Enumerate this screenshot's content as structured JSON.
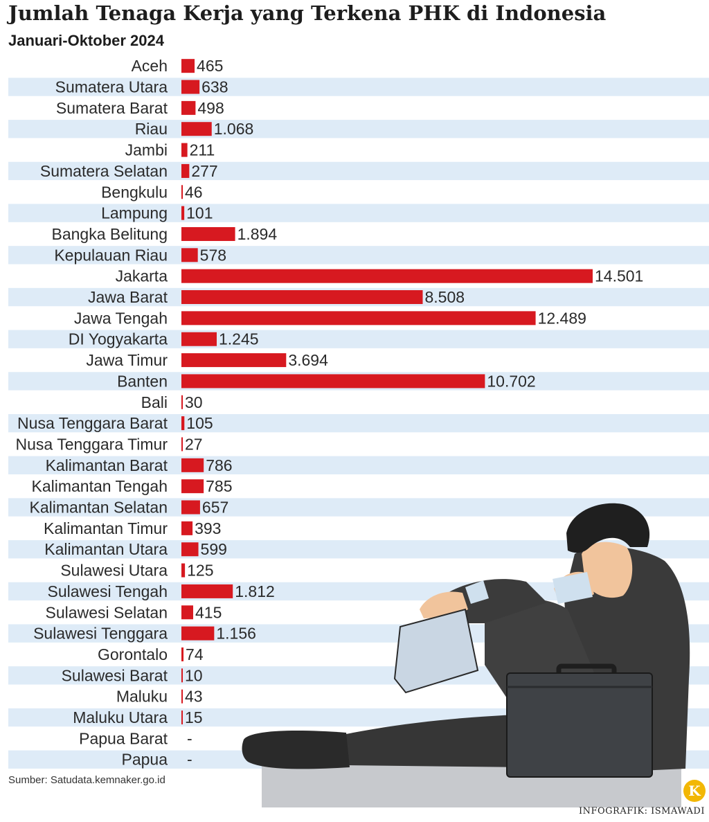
{
  "header": {
    "title": "Jumlah Tenaga Kerja yang Terkena PHK di Indonesia",
    "subtitle": "Januari-Oktober 2024"
  },
  "footer": {
    "source": "Sumber: Satudata.kemnaker.go.id",
    "credit": "INFOGRAFIK: ISMAWADI",
    "logo_letter": "K"
  },
  "colors": {
    "bar": "#d71920",
    "stripe": "#deebf7"
  },
  "chart_data": {
    "type": "bar",
    "orientation": "horizontal",
    "title": "Jumlah Tenaga Kerja yang Terkena PHK di Indonesia",
    "subtitle": "Januari-Oktober 2024",
    "categories": [
      "Aceh",
      "Sumatera Utara",
      "Sumatera Barat",
      "Riau",
      "Jambi",
      "Sumatera Selatan",
      "Bengkulu",
      "Lampung",
      "Bangka Belitung",
      "Kepulauan Riau",
      "Jakarta",
      "Jawa Barat",
      "Jawa Tengah",
      "DI Yogyakarta",
      "Jawa Timur",
      "Banten",
      "Bali",
      "Nusa Tenggara Barat",
      "Nusa Tenggara Timur",
      "Kalimantan Barat",
      "Kalimantan Tengah",
      "Kalimantan Selatan",
      "Kalimantan Timur",
      "Kalimantan Utara",
      "Sulawesi Utara",
      "Sulawesi Tengah",
      "Sulawesi Selatan",
      "Sulawesi Tenggara",
      "Gorontalo",
      "Sulawesi Barat",
      "Maluku",
      "Maluku Utara",
      "Papua Barat",
      "Papua"
    ],
    "values": [
      465,
      638,
      498,
      1068,
      211,
      277,
      46,
      101,
      1894,
      578,
      14501,
      8508,
      12489,
      1245,
      3694,
      10702,
      30,
      105,
      27,
      786,
      785,
      657,
      393,
      599,
      125,
      1812,
      415,
      1156,
      74,
      10,
      43,
      15,
      null,
      null
    ],
    "value_labels": [
      "465",
      "638",
      "498",
      "1.068",
      "211",
      "277",
      "46",
      "101",
      "1.894",
      "578",
      "14.501",
      "8.508",
      "12.489",
      "1.245",
      "3.694",
      "10.702",
      "30",
      "105",
      "27",
      "786",
      "785",
      "657",
      "393",
      "599",
      "125",
      "1.812",
      "415",
      "1.156",
      "74",
      "10",
      "43",
      "15",
      "-",
      "-"
    ],
    "xlim": [
      0,
      14501
    ],
    "grid": false,
    "legend": "none",
    "source": "Sumber: Satudata.kemnaker.go.id"
  }
}
